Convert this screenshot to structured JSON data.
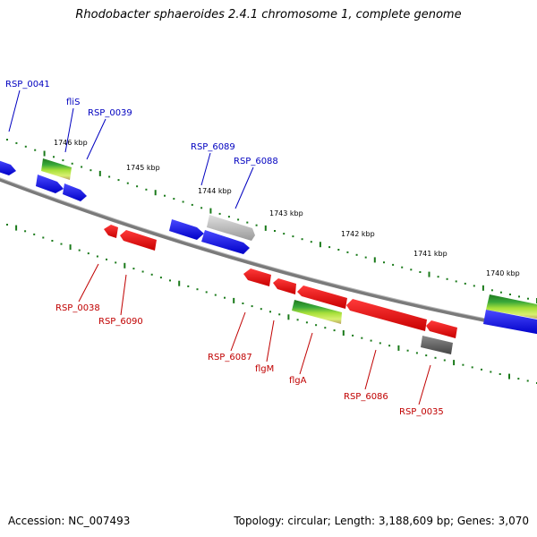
{
  "title": "Rhodobacter sphaeroides 2.4.1 chromosome 1, complete genome",
  "footer": {
    "accession": "Accession: NC_007493",
    "summary": "Topology: circular; Length: 3,188,609 bp; Genes: 3,070"
  },
  "colors": {
    "backbone": "#7a7a7a",
    "tick": "#1a7a1a",
    "forward_label": "#0000c0",
    "reverse_label": "#c00000",
    "blue_gene": "#0000ee",
    "red_gene": "#ee0000",
    "grey_gene": "#aaaaaa",
    "green_gene": "#2a8a2a"
  },
  "scale_ticks": [
    "1746 kbp",
    "1745 kbp",
    "1744 kbp",
    "1743 kbp",
    "1742 kbp",
    "1741 kbp",
    "1740 kbp"
  ],
  "forward_labels": [
    "RSP_0041",
    "fliS",
    "RSP_0039",
    "RSP_6089",
    "RSP_6088"
  ],
  "reverse_labels": [
    "RSP_0038",
    "RSP_6090",
    "RSP_6087",
    "flgM",
    "flgA",
    "RSP_6086",
    "RSP_0035"
  ]
}
